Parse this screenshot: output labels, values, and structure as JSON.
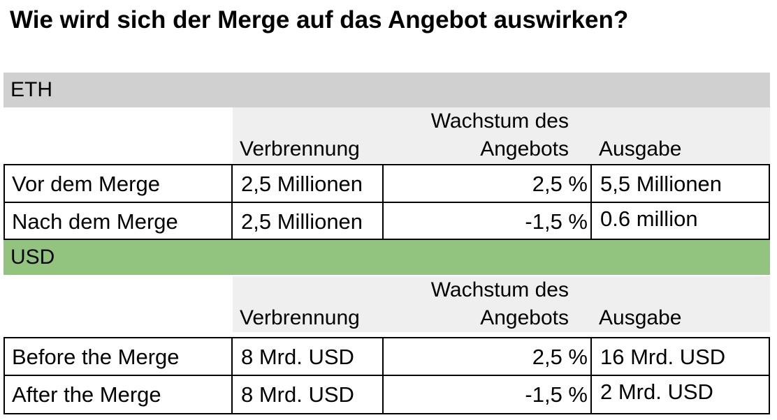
{
  "title": "Wie wird sich der Merge auf das Angebot auswirken?",
  "sections": [
    {
      "label": "ETH",
      "color": "#d0d0d0",
      "headers": {
        "burn": "Verbrennung",
        "growth": "Wachstum des Angebots",
        "issuance": "Ausgabe"
      },
      "rows": [
        {
          "label": "Vor dem Merge",
          "burn": "2,5 Millionen",
          "growth": "2,5 %",
          "issuance": "5,5 Millionen"
        },
        {
          "label": "Nach dem Merge",
          "burn": "2,5 Millionen",
          "growth": "-1,5 %",
          "issuance": "0.6 million"
        }
      ]
    },
    {
      "label": "USD",
      "color": "#93c47f",
      "headers": {
        "burn": "Verbrennung",
        "growth": "Wachstum des Angebots",
        "issuance": "Ausgabe"
      },
      "rows": [
        {
          "label": "Before the Merge",
          "burn": "8 Mrd. USD",
          "growth": "2,5 %",
          "issuance": "16 Mrd. USD"
        },
        {
          "label": "After the Merge",
          "burn": "8 Mrd. USD",
          "growth": "-1,5 %",
          "issuance": "2 Mrd. USD"
        }
      ]
    }
  ]
}
